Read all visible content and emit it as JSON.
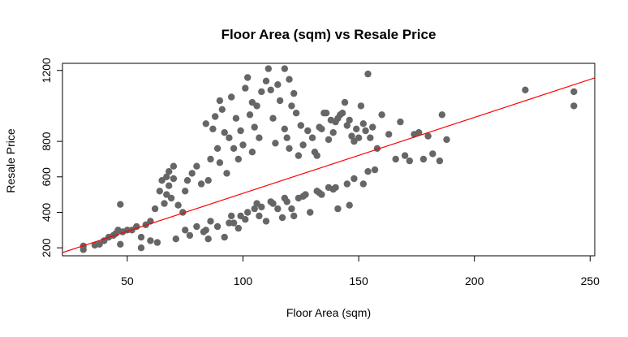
{
  "chart_data": {
    "type": "scatter",
    "title": "Floor Area (sqm) vs Resale Price",
    "xlabel": "Floor Area (sqm)",
    "ylabel": "Resale Price",
    "xlim": [
      22,
      252
    ],
    "ylim": [
      155,
      1240
    ],
    "x_ticks": [
      50,
      100,
      150,
      200,
      250
    ],
    "y_ticks": [
      200,
      400,
      600,
      800,
      1200
    ],
    "grid": false,
    "legend": "none",
    "point_color": "#666666",
    "fit_line_color": "#ff0000",
    "series": [
      {
        "x": [
          31,
          31,
          36,
          38,
          40,
          42,
          44,
          45,
          46,
          47,
          48,
          50,
          52,
          54,
          56,
          58,
          60,
          62,
          64,
          65,
          66,
          67,
          67,
          68,
          68,
          69,
          70,
          70,
          72,
          74,
          75,
          76,
          78,
          80,
          82,
          84,
          85,
          86,
          87,
          88,
          89,
          90,
          90,
          91,
          92,
          93,
          94,
          95,
          96,
          97,
          98,
          99,
          100,
          101,
          102,
          103,
          104,
          104,
          105,
          106,
          107,
          108,
          110,
          111,
          112,
          113,
          114,
          115,
          116,
          118,
          118,
          119,
          120,
          120,
          121,
          122,
          123,
          124,
          125,
          126,
          128,
          130,
          131,
          132,
          133,
          134,
          135,
          136,
          137,
          138,
          139,
          140,
          141,
          142,
          143,
          144,
          145,
          146,
          147,
          148,
          149,
          150,
          151,
          152,
          153,
          154,
          155,
          156,
          158,
          160,
          163,
          166,
          168,
          170,
          172,
          174,
          176,
          178,
          180,
          182,
          185,
          186,
          188,
          222,
          243,
          243,
          47,
          60,
          84,
          96,
          99,
          105,
          106,
          112,
          118,
          121,
          127,
          132,
          137,
          145,
          152,
          154,
          85,
          92,
          98,
          110,
          117,
          122,
          129,
          141,
          146,
          75,
          80,
          86,
          95,
          102,
          108,
          113,
          124,
          134,
          139,
          56,
          63,
          71,
          77,
          83,
          89,
          94,
          101,
          107,
          115,
          119,
          126,
          133,
          140,
          148,
          157
        ],
        "y": [
          190,
          210,
          215,
          220,
          240,
          260,
          270,
          280,
          300,
          445,
          290,
          300,
          300,
          320,
          260,
          330,
          350,
          420,
          520,
          580,
          450,
          500,
          600,
          630,
          550,
          480,
          590,
          660,
          440,
          400,
          520,
          580,
          620,
          660,
          560,
          900,
          580,
          700,
          870,
          940,
          760,
          680,
          1030,
          980,
          850,
          620,
          820,
          1050,
          760,
          930,
          700,
          860,
          780,
          1100,
          1160,
          950,
          740,
          1020,
          880,
          1000,
          820,
          1080,
          1140,
          1210,
          1090,
          930,
          790,
          1120,
          1030,
          1210,
          870,
          820,
          1150,
          760,
          1000,
          1070,
          960,
          720,
          890,
          780,
          860,
          820,
          740,
          720,
          880,
          870,
          960,
          960,
          810,
          920,
          850,
          910,
          930,
          950,
          960,
          1020,
          890,
          920,
          830,
          800,
          870,
          820,
          1000,
          900,
          860,
          1180,
          820,
          880,
          760,
          950,
          840,
          700,
          910,
          720,
          690,
          840,
          850,
          700,
          830,
          730,
          690,
          950,
          810,
          1090,
          1080,
          1000,
          220,
          240,
          300,
          340,
          380,
          420,
          450,
          460,
          480,
          420,
          500,
          520,
          540,
          560,
          560,
          630,
          250,
          260,
          310,
          350,
          370,
          380,
          400,
          420,
          440,
          300,
          320,
          350,
          380,
          400,
          430,
          450,
          480,
          500,
          530,
          200,
          230,
          250,
          270,
          290,
          320,
          340,
          360,
          380,
          420,
          460,
          490,
          510,
          540,
          590,
          640
        ]
      }
    ],
    "fit_line": {
      "x": [
        22,
        252
      ],
      "y": [
        173,
        1158
      ]
    }
  }
}
